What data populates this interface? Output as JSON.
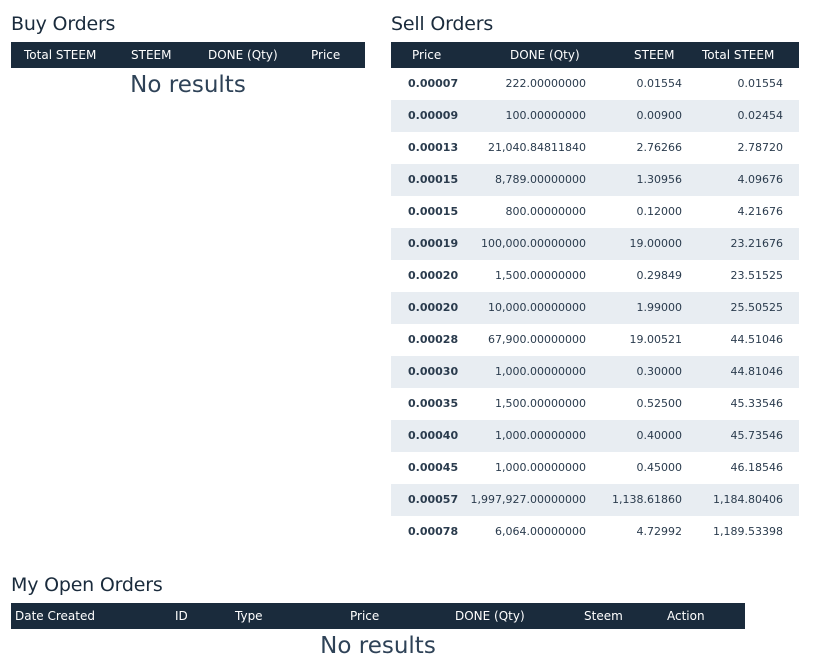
{
  "buy_orders": {
    "title": "Buy Orders",
    "columns": [
      "Total STEEM",
      "STEEM",
      "DONE (Qty)",
      "Price"
    ],
    "empty_text": "No results"
  },
  "sell_orders": {
    "title": "Sell Orders",
    "columns": [
      "Price",
      "DONE (Qty)",
      "STEEM",
      "Total STEEM"
    ],
    "rows": [
      {
        "price": "0.00007",
        "qty": "222.00000000",
        "steem": "0.01554",
        "total": "0.01554"
      },
      {
        "price": "0.00009",
        "qty": "100.00000000",
        "steem": "0.00900",
        "total": "0.02454"
      },
      {
        "price": "0.00013",
        "qty": "21,040.84811840",
        "steem": "2.76266",
        "total": "2.78720"
      },
      {
        "price": "0.00015",
        "qty": "8,789.00000000",
        "steem": "1.30956",
        "total": "4.09676"
      },
      {
        "price": "0.00015",
        "qty": "800.00000000",
        "steem": "0.12000",
        "total": "4.21676"
      },
      {
        "price": "0.00019",
        "qty": "100,000.00000000",
        "steem": "19.00000",
        "total": "23.21676"
      },
      {
        "price": "0.00020",
        "qty": "1,500.00000000",
        "steem": "0.29849",
        "total": "23.51525"
      },
      {
        "price": "0.00020",
        "qty": "10,000.00000000",
        "steem": "1.99000",
        "total": "25.50525"
      },
      {
        "price": "0.00028",
        "qty": "67,900.00000000",
        "steem": "19.00521",
        "total": "44.51046"
      },
      {
        "price": "0.00030",
        "qty": "1,000.00000000",
        "steem": "0.30000",
        "total": "44.81046"
      },
      {
        "price": "0.00035",
        "qty": "1,500.00000000",
        "steem": "0.52500",
        "total": "45.33546"
      },
      {
        "price": "0.00040",
        "qty": "1,000.00000000",
        "steem": "0.40000",
        "total": "45.73546"
      },
      {
        "price": "0.00045",
        "qty": "1,000.00000000",
        "steem": "0.45000",
        "total": "46.18546"
      },
      {
        "price": "0.00057",
        "qty": "1,997,927.00000000",
        "steem": "1,138.61860",
        "total": "1,184.80406"
      },
      {
        "price": "0.00078",
        "qty": "6,064.00000000",
        "steem": "4.72992",
        "total": "1,189.53398"
      }
    ]
  },
  "open_orders": {
    "title": "My Open Orders",
    "columns": [
      "Date Created",
      "ID",
      "Type",
      "Price",
      "DONE (Qty)",
      "Steem",
      "Action"
    ],
    "empty_text": "No results"
  },
  "colors": {
    "header_bg": "#1a2b3c",
    "header_text": "#ffffff",
    "alt_row_bg": "#e8edf2",
    "title_text": "#1a2b3c"
  }
}
